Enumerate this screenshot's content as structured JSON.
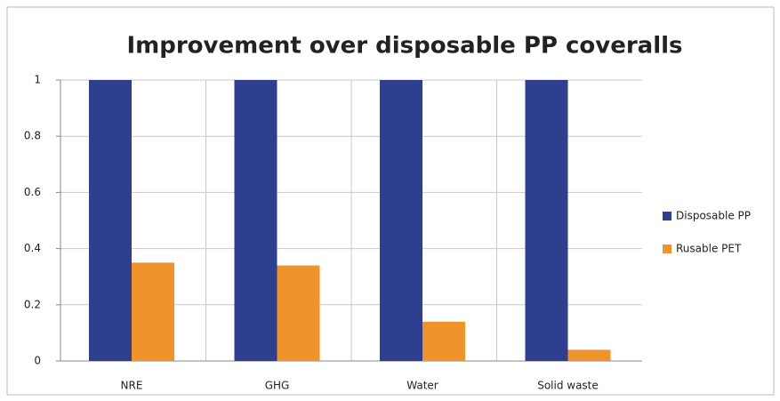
{
  "chart_data": {
    "type": "bar",
    "title": "Improvement over disposable PP coveralls",
    "categories": [
      "NRE",
      "GHG",
      "Water",
      "Solid waste"
    ],
    "series": [
      {
        "name": "Disposable PP",
        "color": "#2e3f8f",
        "values": [
          1,
          1,
          1,
          1
        ]
      },
      {
        "name": "Rusable PET",
        "color": "#f0932b",
        "values": [
          0.35,
          0.34,
          0.14,
          0.04
        ]
      }
    ],
    "ylim": [
      0,
      1
    ],
    "yticks": [
      0,
      0.2,
      0.4,
      0.6,
      0.8,
      1
    ],
    "grid": true,
    "legend": "right"
  }
}
